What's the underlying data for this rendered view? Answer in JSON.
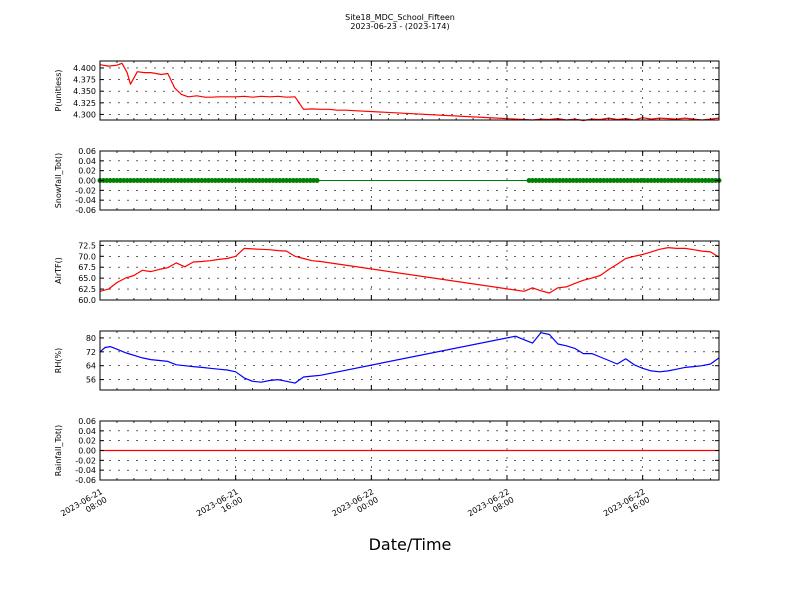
{
  "title": "Site18_MDC_School_Fifteen",
  "subtitle": "2023-06-23 - (2023-174)",
  "xlabel": "Date/Time",
  "x_ticks": [
    {
      "value": 8,
      "label": "2023-06-21\n08:00"
    },
    {
      "value": 16,
      "label": "2023-06-21\n16:00"
    },
    {
      "value": 24,
      "label": "2023-06-22\n00:00"
    },
    {
      "value": 32,
      "label": "2023-06-22\n08:00"
    },
    {
      "value": 40,
      "label": "2023-06-22\n16:00"
    }
  ],
  "xlim": [
    8,
    44.5
  ],
  "colors": {
    "pressure": "#ff0000",
    "snowfall": "#008000",
    "airtf": "#ff0000",
    "rh": "#0000ff",
    "rainfall": "#ff0000"
  },
  "chart_data": [
    {
      "type": "line",
      "ylabel": "P(unitless)",
      "ylim": [
        4.288,
        4.415
      ],
      "yticks": [
        4.3,
        4.325,
        4.35,
        4.375,
        4.4
      ],
      "ytick_labels": [
        "4.300",
        "4.325",
        "4.350",
        "4.375",
        "4.400"
      ],
      "grid": true,
      "series": [
        {
          "color_key": "pressure",
          "x": [
            8.0,
            8.5,
            9.0,
            9.3,
            9.6,
            9.8,
            10.2,
            10.6,
            11.0,
            11.3,
            11.6,
            12.0,
            12.4,
            12.8,
            13.2,
            13.7,
            14.2,
            14.6,
            15.0,
            15.5,
            16.0,
            16.5,
            17.0,
            17.5,
            18.0,
            18.5,
            19.0,
            19.5,
            20.0,
            20.5,
            21.0,
            21.5,
            22.0,
            22.5,
            23.0,
            33.0,
            33.5,
            34.0,
            34.5,
            35.0,
            35.5,
            36.0,
            36.5,
            37.0,
            37.5,
            38.0,
            38.5,
            39.0,
            39.5,
            40.0,
            40.5,
            41.0,
            41.5,
            42.0,
            42.5,
            43.0,
            43.5,
            44.0,
            44.5
          ],
          "y": [
            4.407,
            4.404,
            4.406,
            4.41,
            4.39,
            4.365,
            4.392,
            4.39,
            4.39,
            4.388,
            4.386,
            4.388,
            4.357,
            4.343,
            4.338,
            4.34,
            4.337,
            4.337,
            4.338,
            4.338,
            4.338,
            4.339,
            4.337,
            4.339,
            4.338,
            4.339,
            4.337,
            4.338,
            4.311,
            4.312,
            4.311,
            4.311,
            4.309,
            4.309,
            4.308,
            4.289,
            4.288,
            4.29,
            4.289,
            4.291,
            4.288,
            4.29,
            4.287,
            4.29,
            4.289,
            4.292,
            4.289,
            4.291,
            4.288,
            4.293,
            4.29,
            4.292,
            4.291,
            4.29,
            4.292,
            4.29,
            4.288,
            4.29,
            4.292
          ]
        }
      ]
    },
    {
      "type": "scatter",
      "ylabel": "Snowfall_Tot()",
      "ylim": [
        -0.06,
        0.06
      ],
      "yticks": [
        -0.06,
        -0.04,
        -0.02,
        0.0,
        0.02,
        0.04,
        0.06
      ],
      "ytick_labels": [
        "-0.06",
        "-0.04",
        "-0.02",
        "0.00",
        "0.02",
        "0.04",
        "0.06"
      ],
      "grid": true,
      "series": [
        {
          "color_key": "snowfall",
          "line": [
            [
              8.0,
              0
            ],
            [
              44.5,
              0
            ]
          ],
          "marker_ranges": [
            [
              8.0,
              20.9
            ],
            [
              33.3,
              44.5
            ]
          ],
          "marker_step": 0.2,
          "value": 0
        }
      ]
    },
    {
      "type": "line",
      "ylabel": "AirTF()",
      "ylim": [
        60.0,
        73.5
      ],
      "yticks": [
        60.0,
        62.5,
        65.0,
        67.5,
        70.0,
        72.5
      ],
      "ytick_labels": [
        "60.0",
        "62.5",
        "65.0",
        "67.5",
        "70.0",
        "72.5"
      ],
      "grid": true,
      "series": [
        {
          "color_key": "airtf",
          "x": [
            8.0,
            8.5,
            9.0,
            9.5,
            10.0,
            10.5,
            11.0,
            11.5,
            12.0,
            12.5,
            13.0,
            13.5,
            14.0,
            14.5,
            15.0,
            15.5,
            16.0,
            16.5,
            17.0,
            17.5,
            18.0,
            18.5,
            19.0,
            19.5,
            20.0,
            20.5,
            21.0,
            33.0,
            33.5,
            34.0,
            34.5,
            35.0,
            35.5,
            36.0,
            36.5,
            37.0,
            37.5,
            38.0,
            38.5,
            39.0,
            39.5,
            40.0,
            40.5,
            41.0,
            41.5,
            42.0,
            42.5,
            43.0,
            43.5,
            44.0,
            44.5
          ],
          "y": [
            62.0,
            62.5,
            64.0,
            65.0,
            65.6,
            66.8,
            66.5,
            67.0,
            67.4,
            68.5,
            67.6,
            68.7,
            68.8,
            69.0,
            69.3,
            69.5,
            70.0,
            71.8,
            71.7,
            71.6,
            71.5,
            71.3,
            71.2,
            70.0,
            69.5,
            69.0,
            68.8,
            62.0,
            62.8,
            62.1,
            61.6,
            62.8,
            63.0,
            63.8,
            64.5,
            65.0,
            65.6,
            67.0,
            68.2,
            69.5,
            70.0,
            70.4,
            71.0,
            71.6,
            72.0,
            71.8,
            71.8,
            71.5,
            71.2,
            71.0,
            69.8
          ]
        }
      ]
    },
    {
      "type": "line",
      "ylabel": "RH(%)",
      "ylim": [
        50,
        84
      ],
      "yticks": [
        56,
        64,
        72,
        80
      ],
      "ytick_labels": [
        "56",
        "64",
        "72",
        "80"
      ],
      "grid": true,
      "series": [
        {
          "color_key": "rh",
          "x": [
            8.0,
            8.3,
            8.6,
            9.0,
            9.5,
            10.0,
            10.5,
            11.0,
            11.5,
            12.0,
            12.5,
            13.0,
            13.5,
            14.0,
            14.5,
            15.0,
            15.5,
            16.0,
            16.5,
            17.0,
            17.5,
            18.0,
            18.5,
            19.0,
            19.5,
            20.0,
            20.5,
            21.0,
            32.5,
            33.0,
            33.5,
            34.0,
            34.5,
            35.0,
            35.5,
            36.0,
            36.5,
            37.0,
            37.5,
            38.0,
            38.5,
            39.0,
            39.5,
            40.0,
            40.5,
            41.0,
            41.5,
            42.0,
            42.5,
            43.0,
            43.5,
            44.0,
            44.5
          ],
          "y": [
            72.0,
            74.5,
            75.0,
            73.5,
            71.5,
            70.0,
            68.5,
            67.5,
            67.0,
            66.5,
            64.5,
            64.0,
            63.5,
            63.0,
            62.5,
            62.0,
            61.5,
            60.5,
            57.0,
            55.0,
            54.5,
            55.5,
            56.0,
            55.0,
            54.0,
            57.5,
            58.0,
            58.5,
            81.0,
            79.0,
            77.0,
            83.0,
            82.0,
            76.5,
            75.5,
            74.0,
            71.0,
            71.0,
            69.0,
            67.0,
            65.0,
            68.0,
            64.5,
            62.5,
            61.0,
            60.5,
            61.0,
            62.0,
            63.0,
            63.5,
            64.0,
            65.0,
            68.5
          ]
        }
      ]
    },
    {
      "type": "line",
      "ylabel": "Rainfall_Tot()",
      "ylim": [
        -0.06,
        0.06
      ],
      "yticks": [
        -0.06,
        -0.04,
        -0.02,
        0.0,
        0.02,
        0.04,
        0.06
      ],
      "ytick_labels": [
        "-0.06",
        "-0.04",
        "-0.02",
        "0.00",
        "0.02",
        "0.04",
        "0.06"
      ],
      "grid": true,
      "series": [
        {
          "color_key": "rainfall",
          "x": [
            8.0,
            44.5
          ],
          "y": [
            0,
            0
          ]
        }
      ]
    }
  ]
}
